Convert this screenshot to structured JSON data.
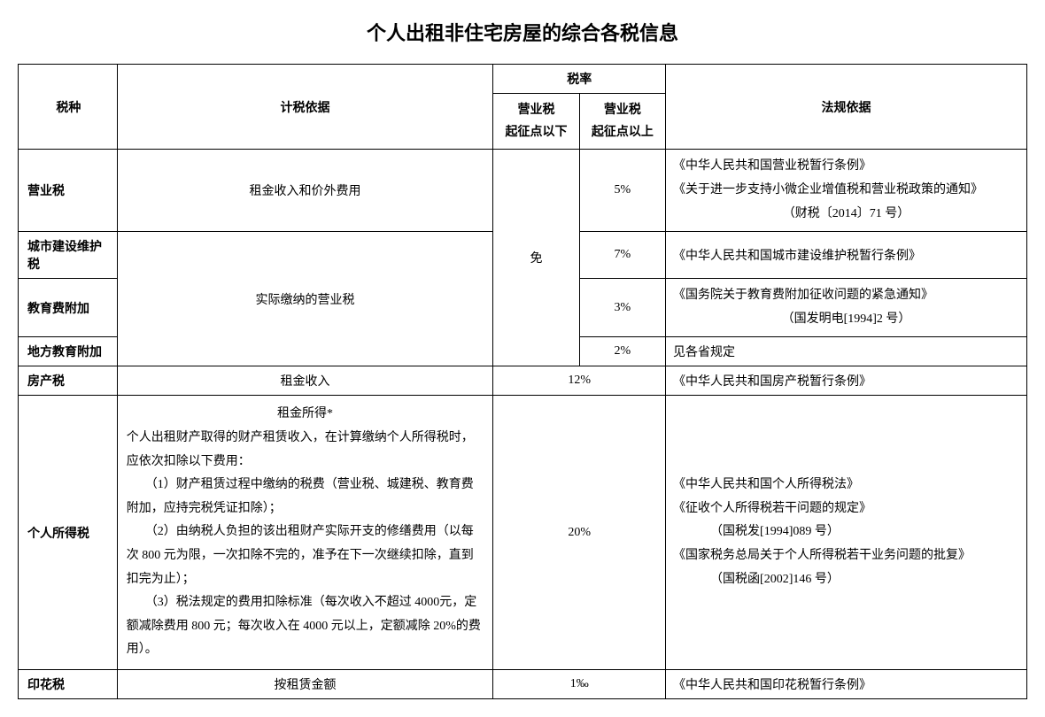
{
  "title": "个人出租非住宅房屋的综合各税信息",
  "headers": {
    "tax_type": "税种",
    "basis": "计税依据",
    "rate": "税率",
    "rate_below": "营业税\n起征点以下",
    "rate_above": "营业税\n起征点以上",
    "law": "法规依据"
  },
  "exempt": "免",
  "rows": {
    "business_tax": {
      "name": "营业税",
      "basis": "租金收入和价外费用",
      "rate_above": "5%",
      "law_line1": "《中华人民共和国营业税暂行条例》",
      "law_line2": "《关于进一步支持小微企业增值税和营业税政策的通知》",
      "law_line3": "（财税〔2014〕71 号）"
    },
    "city_construction": {
      "name": "城市建设维护税",
      "basis": "实际缴纳的营业税",
      "rate_above": "7%",
      "law": "《中华人民共和国城市建设维护税暂行条例》"
    },
    "education_surcharge": {
      "name": "教育费附加",
      "rate_above": "3%",
      "law_line1": "《国务院关于教育费附加征收问题的紧急通知》",
      "law_line2": "（国发明电[1994]2 号）"
    },
    "local_education": {
      "name": "地方教育附加",
      "rate_above": "2%",
      "law": "见各省规定"
    },
    "property_tax": {
      "name": "房产税",
      "basis": "租金收入",
      "rate": "12%",
      "law": "《中华人民共和国房产税暂行条例》"
    },
    "personal_income_tax": {
      "name": "个人所得税",
      "basis_center": "租金所得*",
      "basis_p1": "个人出租财产取得的财产租赁收入，在计算缴纳个人所得税时，应依次扣除以下费用：",
      "basis_p2": "　　（1）财产租赁过程中缴纳的税费（营业税、城建税、教育费附加，应持完税凭证扣除）；",
      "basis_p3": "　　（2）由纳税人负担的该出租财产实际开支的修缮费用（以每次 800 元为限，一次扣除不完的，准予在下一次继续扣除，直到扣完为止）；",
      "basis_p4": "　　（3）税法规定的费用扣除标准（每次收入不超过 4000元，定额减除费用 800 元；每次收入在 4000 元以上，定额减除 20%的费用）。",
      "rate": "20%",
      "law_line1": "《中华人民共和国个人所得税法》",
      "law_line2": "《征收个人所得税若干问题的规定》",
      "law_line3": "（国税发[1994]089 号）",
      "law_line4": "《国家税务总局关于个人所得税若干业务问题的批复》",
      "law_line5": "（国税函[2002]146 号）"
    },
    "stamp_tax": {
      "name": "印花税",
      "basis": "按租赁金额",
      "rate": "1‰",
      "law": "《中华人民共和国印花税暂行条例》"
    }
  },
  "styling": {
    "title_fontsize": 22,
    "body_fontsize": 14,
    "border_color": "#000000",
    "background_color": "#ffffff",
    "font_family_title": "Microsoft YaHei",
    "font_family_body": "SimSun",
    "line_height_multi": 1.9
  }
}
